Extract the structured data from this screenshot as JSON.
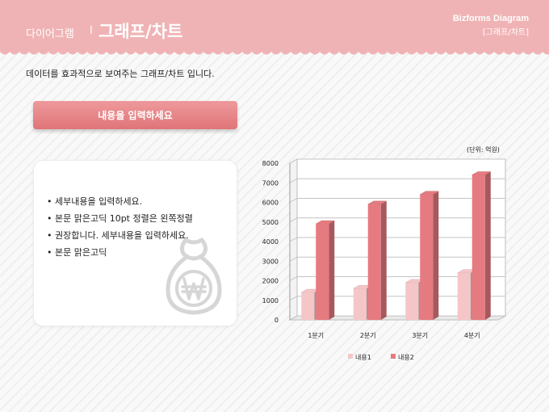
{
  "header": {
    "small_title": "다이어그램",
    "separator": "I",
    "big_title": "그래프/차트",
    "brand": "Bizforms Diagram",
    "brand_sub": "[그래프/차트]"
  },
  "subtitle": "데이터를 효과적으로 보여주는 그래프/차트 입니다.",
  "input_button_label": "내용을 입력하세요",
  "bullets": [
    "• 세부내용을 입력하세요.",
    "• 본문 맑은고딕 10pt 정렬은 왼쪽정렬",
    "• 권장합니다. 세부내용을 입력하세요.",
    "• 본문 맑은고딕"
  ],
  "colors": {
    "header": "#f0b3b5",
    "series1": "#f5c6c8",
    "series2": "#e57b80",
    "button": "#e58589"
  },
  "icon": "won-money-bag-icon",
  "chart_data": {
    "type": "bar",
    "unit_label": "(단위: 억원)",
    "categories": [
      "1분기",
      "2분기",
      "3분기",
      "4분기"
    ],
    "series": [
      {
        "name": "내용1",
        "values": [
          1400,
          1600,
          1900,
          2400
        ]
      },
      {
        "name": "내용2",
        "values": [
          4900,
          5900,
          6400,
          7400
        ]
      }
    ],
    "ylim": [
      0,
      8000
    ],
    "yticks": [
      0,
      1000,
      2000,
      3000,
      4000,
      5000,
      6000,
      7000,
      8000
    ],
    "grid": true,
    "legend": "bottom"
  }
}
